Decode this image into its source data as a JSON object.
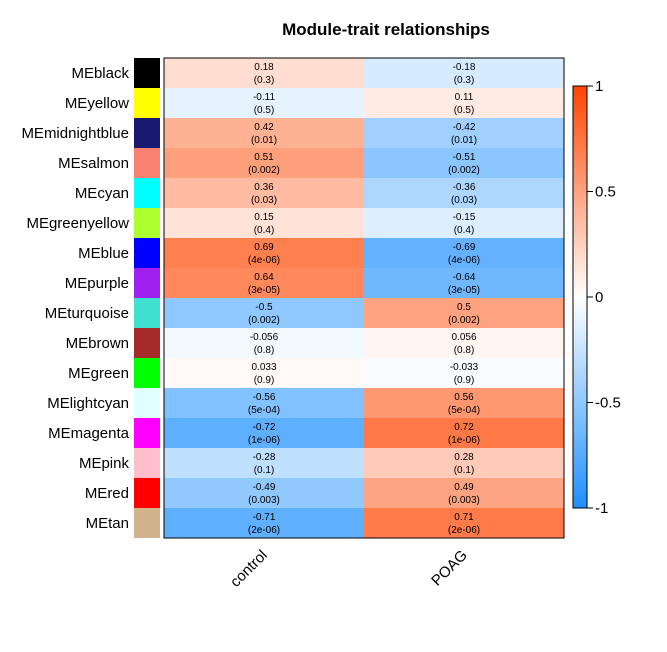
{
  "chart_data": {
    "type": "heatmap",
    "title": "Module-trait relationships",
    "columns": [
      "control",
      "POAG"
    ],
    "rows": [
      {
        "name": "MEblack",
        "swatch": "#000000",
        "values": [
          0.18,
          -0.18
        ],
        "labels": [
          "0.18",
          "-0.18"
        ],
        "pvalues": [
          "(0.3)",
          "(0.3)"
        ]
      },
      {
        "name": "MEyellow",
        "swatch": "#ffff00",
        "values": [
          -0.11,
          0.11
        ],
        "labels": [
          "-0.11",
          "0.11"
        ],
        "pvalues": [
          "(0.5)",
          "(0.5)"
        ]
      },
      {
        "name": "MEmidnightblue",
        "swatch": "#191970",
        "values": [
          0.42,
          -0.42
        ],
        "labels": [
          "0.42",
          "-0.42"
        ],
        "pvalues": [
          "(0.01)",
          "(0.01)"
        ]
      },
      {
        "name": "MEsalmon",
        "swatch": "#fa8072",
        "values": [
          0.51,
          -0.51
        ],
        "labels": [
          "0.51",
          "-0.51"
        ],
        "pvalues": [
          "(0.002)",
          "(0.002)"
        ]
      },
      {
        "name": "MEcyan",
        "swatch": "#00ffff",
        "values": [
          0.36,
          -0.36
        ],
        "labels": [
          "0.36",
          "-0.36"
        ],
        "pvalues": [
          "(0.03)",
          "(0.03)"
        ]
      },
      {
        "name": "MEgreenyellow",
        "swatch": "#adff2f",
        "values": [
          0.15,
          -0.15
        ],
        "labels": [
          "0.15",
          "-0.15"
        ],
        "pvalues": [
          "(0.4)",
          "(0.4)"
        ]
      },
      {
        "name": "MEblue",
        "swatch": "#0000ff",
        "values": [
          0.69,
          -0.69
        ],
        "labels": [
          "0.69",
          "-0.69"
        ],
        "pvalues": [
          "(4e-06)",
          "(4e-06)"
        ]
      },
      {
        "name": "MEpurple",
        "swatch": "#a020f0",
        "values": [
          0.64,
          -0.64
        ],
        "labels": [
          "0.64",
          "-0.64"
        ],
        "pvalues": [
          "(3e-05)",
          "(3e-05)"
        ]
      },
      {
        "name": "MEturquoise",
        "swatch": "#40e0d0",
        "values": [
          -0.5,
          0.5
        ],
        "labels": [
          "-0.5",
          "0.5"
        ],
        "pvalues": [
          "(0.002)",
          "(0.002)"
        ]
      },
      {
        "name": "MEbrown",
        "swatch": "#a52a2a",
        "values": [
          -0.056,
          0.056
        ],
        "labels": [
          "-0.056",
          "0.056"
        ],
        "pvalues": [
          "(0.8)",
          "(0.8)"
        ]
      },
      {
        "name": "MEgreen",
        "swatch": "#00ff00",
        "values": [
          0.033,
          -0.033
        ],
        "labels": [
          "0.033",
          "-0.033"
        ],
        "pvalues": [
          "(0.9)",
          "(0.9)"
        ]
      },
      {
        "name": "MElightcyan",
        "swatch": "#e0ffff",
        "values": [
          -0.56,
          0.56
        ],
        "labels": [
          "-0.56",
          "0.56"
        ],
        "pvalues": [
          "(5e-04)",
          "(5e-04)"
        ]
      },
      {
        "name": "MEmagenta",
        "swatch": "#ff00ff",
        "values": [
          -0.72,
          0.72
        ],
        "labels": [
          "-0.72",
          "0.72"
        ],
        "pvalues": [
          "(1e-06)",
          "(1e-06)"
        ]
      },
      {
        "name": "MEpink",
        "swatch": "#ffc0cb",
        "values": [
          -0.28,
          0.28
        ],
        "labels": [
          "-0.28",
          "0.28"
        ],
        "pvalues": [
          "(0.1)",
          "(0.1)"
        ]
      },
      {
        "name": "MEred",
        "swatch": "#ff0000",
        "values": [
          -0.49,
          0.49
        ],
        "labels": [
          "-0.49",
          "0.49"
        ],
        "pvalues": [
          "(0.003)",
          "(0.003)"
        ]
      },
      {
        "name": "MEtan",
        "swatch": "#d2b48c",
        "values": [
          -0.71,
          0.71
        ],
        "labels": [
          "-0.71",
          "0.71"
        ],
        "pvalues": [
          "(2e-06)",
          "(2e-06)"
        ]
      }
    ],
    "color_scale": {
      "min": -1,
      "max": 1,
      "low_color": "#1e90ff",
      "mid_color": "#ffffff",
      "high_color": "#ff4500",
      "ticks": [
        "1",
        "0.5",
        "0",
        "-0.5",
        "-1"
      ]
    },
    "legend_position": "right"
  }
}
